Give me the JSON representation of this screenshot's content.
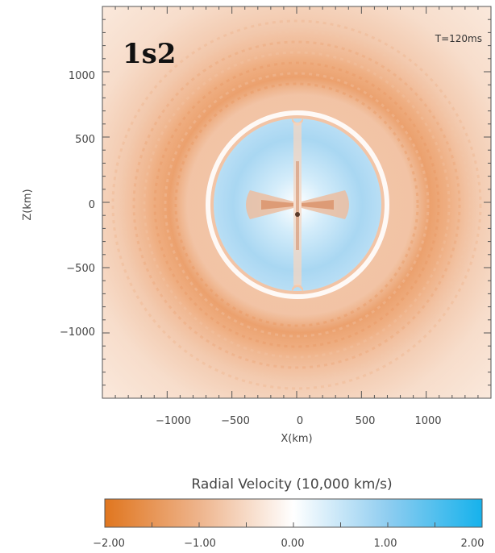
{
  "chart_data": {
    "type": "heatmap",
    "panel_label": "1s2",
    "time_label": "T=120ms",
    "xlabel": "X(km)",
    "ylabel": "Z(km)",
    "xlim": [
      -1500,
      1500
    ],
    "ylim": [
      -1500,
      1500
    ],
    "xticks": [
      -1000,
      -500,
      0,
      500,
      1000
    ],
    "xtick_labels": [
      "−1000",
      "−500",
      "0",
      "500",
      "1000"
    ],
    "yticks": [
      1000,
      500,
      0,
      -500,
      -1000
    ],
    "ytick_labels": [
      "1000",
      "500",
      "0",
      "−500",
      "−1000"
    ],
    "colorbar": {
      "title": "Radial Velocity (10,000 km/s)",
      "range": [
        -2.0,
        2.0
      ],
      "ticks": [
        -2.0,
        -1.0,
        0.0,
        1.0,
        2.0
      ],
      "tick_labels": [
        "−2.00",
        "−1.00",
        "0.00",
        "1.00",
        "2.00"
      ],
      "colors": [
        "#e0761f",
        "#f0c3a4",
        "#ffffff",
        "#9ed3f1",
        "#16b2ec"
      ]
    },
    "field": {
      "inner_region_value": 0.4,
      "inner_region_semi_axes_km": [
        640,
        700
      ],
      "shock_shell_value": -0.6,
      "shock_shell_radius_km": [
        820,
        980
      ],
      "outer_value": -0.25,
      "equatorial_jet_value": -0.9,
      "axis_value": -0.3
    },
    "grid": false
  }
}
